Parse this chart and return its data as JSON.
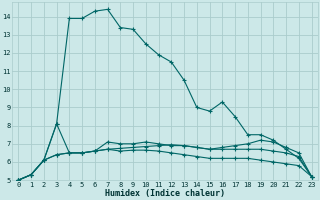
{
  "xlabel": "Humidex (Indice chaleur)",
  "bg_color": "#cce8e8",
  "grid_color": "#aacccc",
  "line_color": "#006666",
  "xlim": [
    -0.5,
    23.5
  ],
  "ylim": [
    5.0,
    14.8
  ],
  "xticks": [
    0,
    1,
    2,
    3,
    4,
    5,
    6,
    7,
    8,
    9,
    10,
    11,
    12,
    13,
    14,
    15,
    16,
    17,
    18,
    19,
    20,
    21,
    22,
    23
  ],
  "yticks": [
    5,
    6,
    7,
    8,
    9,
    10,
    11,
    12,
    13,
    14
  ],
  "line1_x": [
    0,
    1,
    2,
    3,
    4,
    5,
    6,
    7,
    8,
    9,
    10,
    11,
    12,
    13,
    14,
    15,
    16,
    17,
    18,
    19,
    20,
    21,
    22,
    23
  ],
  "line1_y": [
    5.0,
    5.3,
    6.1,
    8.1,
    13.9,
    13.9,
    14.3,
    14.4,
    13.4,
    13.3,
    12.5,
    11.9,
    11.5,
    10.5,
    9.0,
    8.8,
    9.3,
    8.5,
    7.5,
    7.5,
    7.2,
    6.7,
    6.2,
    5.2
  ],
  "line2_x": [
    0,
    1,
    2,
    3,
    4,
    5,
    6,
    7,
    8,
    9,
    10,
    11,
    12,
    13,
    14,
    15,
    16,
    17,
    18,
    19,
    20,
    21,
    22,
    23
  ],
  "line2_y": [
    5.0,
    5.3,
    6.1,
    8.1,
    6.5,
    6.5,
    6.6,
    7.1,
    7.0,
    7.0,
    7.1,
    7.0,
    6.9,
    6.9,
    6.8,
    6.7,
    6.8,
    6.9,
    7.0,
    7.2,
    7.1,
    6.8,
    6.5,
    5.2
  ],
  "line3_x": [
    0,
    1,
    2,
    3,
    4,
    5,
    6,
    7,
    8,
    9,
    10,
    11,
    12,
    13,
    14,
    15,
    16,
    17,
    18,
    19,
    20,
    21,
    22,
    23
  ],
  "line3_y": [
    5.0,
    5.3,
    6.1,
    6.4,
    6.5,
    6.5,
    6.6,
    6.7,
    6.75,
    6.8,
    6.85,
    6.9,
    6.95,
    6.9,
    6.8,
    6.7,
    6.7,
    6.7,
    6.7,
    6.7,
    6.6,
    6.5,
    6.3,
    5.2
  ],
  "line4_x": [
    0,
    1,
    2,
    3,
    4,
    5,
    6,
    7,
    8,
    9,
    10,
    11,
    12,
    13,
    14,
    15,
    16,
    17,
    18,
    19,
    20,
    21,
    22,
    23
  ],
  "line4_y": [
    5.0,
    5.3,
    6.1,
    6.4,
    6.5,
    6.5,
    6.6,
    6.7,
    6.6,
    6.65,
    6.65,
    6.6,
    6.5,
    6.4,
    6.3,
    6.2,
    6.2,
    6.2,
    6.2,
    6.1,
    6.0,
    5.9,
    5.8,
    5.2
  ],
  "tick_fontsize": 5.0,
  "xlabel_fontsize": 6.0
}
